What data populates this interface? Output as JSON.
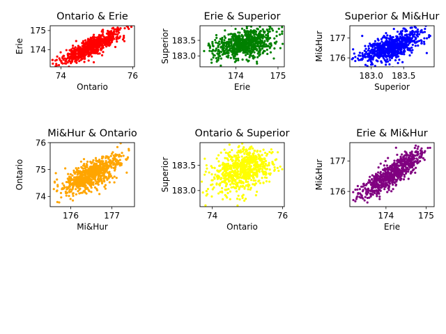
{
  "chart_data": [
    {
      "type": "scatter",
      "title": "Ontario & Erie",
      "xlabel": "Ontario",
      "ylabel": "Erie",
      "color": "#ff0000",
      "xlim": [
        73.7,
        76.05
      ],
      "ylim": [
        173.1,
        175.25
      ],
      "xticks": [
        74,
        76
      ],
      "yticks": [
        174,
        175
      ],
      "trend": {
        "x_from": 73.8,
        "y_from": 173.2,
        "x_to": 75.9,
        "y_to": 175.1,
        "spread_y": 0.22
      },
      "n_points": 700,
      "grid": false
    },
    {
      "type": "scatter",
      "title": "Erie & Superior",
      "xlabel": "Erie",
      "ylabel": "Superior",
      "color": "#008000",
      "xlim": [
        173.15,
        175.15
      ],
      "ylim": [
        182.65,
        183.97
      ],
      "xticks": [
        174,
        175
      ],
      "yticks": [
        183.0,
        183.5
      ],
      "trend": {
        "x_from": 173.3,
        "y_from": 183.2,
        "x_to": 175.1,
        "y_to": 183.6,
        "spread_y": 0.22
      },
      "n_points": 700,
      "grid": false
    },
    {
      "type": "scatter",
      "title": "Superior & Mi&Hur",
      "xlabel": "Superior",
      "ylabel": "Mi&Hur",
      "color": "#0000ff",
      "xlim": [
        182.67,
        183.97
      ],
      "ylim": [
        175.55,
        177.62
      ],
      "xticks": [
        183.0,
        183.5
      ],
      "yticks": [
        176,
        177
      ],
      "trend": {
        "x_from": 182.75,
        "y_from": 175.85,
        "x_to": 183.9,
        "y_to": 177.25,
        "spread_y": 0.3
      },
      "n_points": 700,
      "grid": false
    },
    {
      "type": "scatter",
      "title": "Mi&Hur & Ontario",
      "xlabel": "Mi&Hur",
      "ylabel": "Ontario",
      "color": "#ffa500",
      "xlim": [
        175.5,
        177.55
      ],
      "ylim": [
        73.62,
        76.0
      ],
      "xticks": [
        176,
        177
      ],
      "yticks": [
        74,
        75,
        76
      ],
      "trend": {
        "x_from": 175.65,
        "y_from": 74.2,
        "x_to": 177.4,
        "y_to": 75.4,
        "spread_y": 0.25
      },
      "n_points": 700,
      "grid": false
    },
    {
      "type": "scatter",
      "title": "Ontario & Superior",
      "xlabel": "Ontario",
      "ylabel": "Superior",
      "color": "#ffff00",
      "xlim": [
        73.65,
        76.05
      ],
      "ylim": [
        182.68,
        183.95
      ],
      "xticks": [
        74,
        76
      ],
      "yticks": [
        183.0,
        183.5
      ],
      "trend": {
        "x_from": 73.8,
        "y_from": 183.25,
        "x_to": 75.9,
        "y_to": 183.6,
        "spread_y": 0.2
      },
      "n_points": 700,
      "grid": false
    },
    {
      "type": "scatter",
      "title": "Erie & Mi&Hur",
      "xlabel": "Erie",
      "ylabel": "Mi&Hur",
      "color": "#800080",
      "xlim": [
        173.1,
        175.2
      ],
      "ylim": [
        175.5,
        177.6
      ],
      "xticks": [
        174,
        175
      ],
      "yticks": [
        176,
        177
      ],
      "trend": {
        "x_from": 173.2,
        "y_from": 175.75,
        "x_to": 175.1,
        "y_to": 177.4,
        "spread_y": 0.2
      },
      "n_points": 700,
      "grid": false
    }
  ]
}
